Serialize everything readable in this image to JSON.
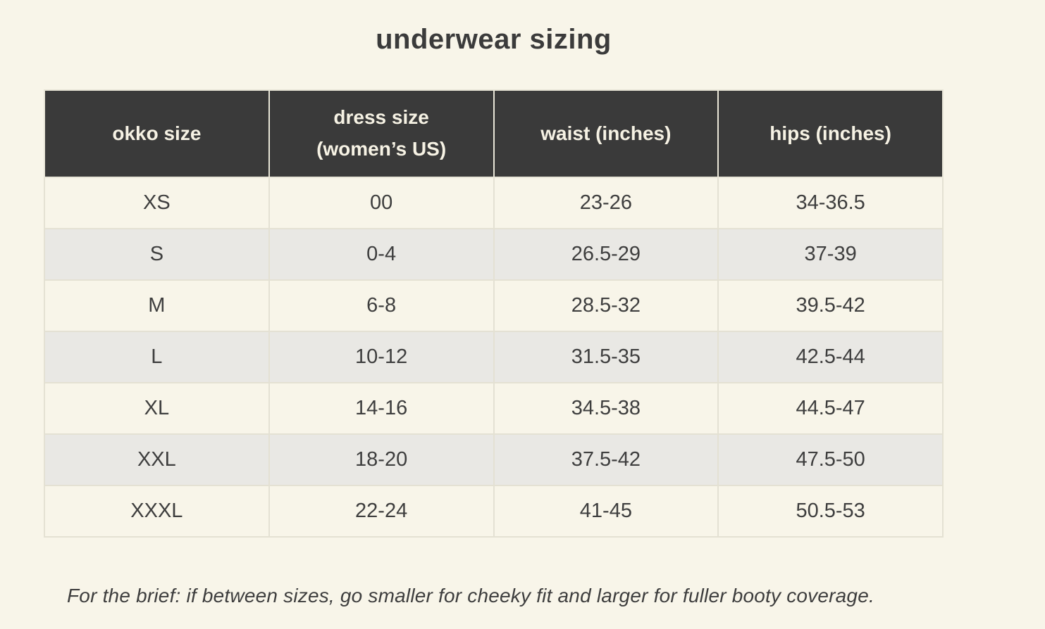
{
  "title": "underwear sizing",
  "footnote": "For the brief: if between sizes, go smaller for cheeky fit and larger for fuller booty coverage.",
  "colors": {
    "page_background": "#f8f5e9",
    "header_background": "#3a3a3a",
    "header_text": "#f6f2e4",
    "gridline": "#e4e1d3",
    "row_alternate": "#e9e8e4",
    "body_text": "#3e3e3e"
  },
  "table": {
    "headers": [
      {
        "line1": "okko size",
        "line2": ""
      },
      {
        "line1": "dress size",
        "line2": "(women’s US)"
      },
      {
        "line1": "waist (inches)",
        "line2": ""
      },
      {
        "line1": "hips (inches)",
        "line2": ""
      }
    ],
    "rows": [
      {
        "okko_size": "XS",
        "dress_size": "00",
        "waist": "23-26",
        "hips": "34-36.5"
      },
      {
        "okko_size": "S",
        "dress_size": "0-4",
        "waist": "26.5-29",
        "hips": "37-39"
      },
      {
        "okko_size": "M",
        "dress_size": "6-8",
        "waist": "28.5-32",
        "hips": "39.5-42"
      },
      {
        "okko_size": "L",
        "dress_size": "10-12",
        "waist": "31.5-35",
        "hips": "42.5-44"
      },
      {
        "okko_size": "XL",
        "dress_size": "14-16",
        "waist": "34.5-38",
        "hips": "44.5-47"
      },
      {
        "okko_size": "XXL",
        "dress_size": "18-20",
        "waist": "37.5-42",
        "hips": "47.5-50"
      },
      {
        "okko_size": "XXXL",
        "dress_size": "22-24",
        "waist": "41-45",
        "hips": "50.5-53"
      }
    ]
  }
}
